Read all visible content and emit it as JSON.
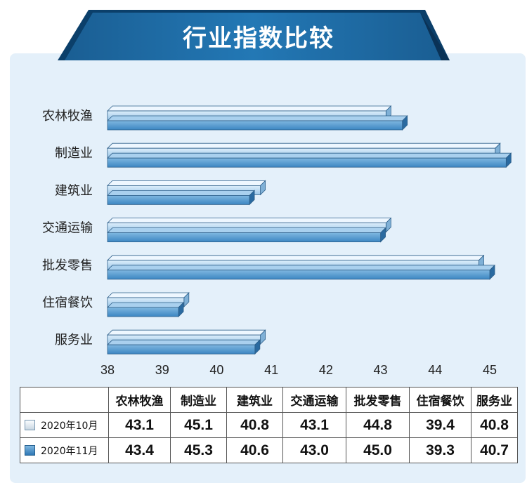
{
  "title": "行业指数比较",
  "chart_data": {
    "type": "bar",
    "orientation": "horizontal",
    "categories": [
      "农林牧渔",
      "制造业",
      "建筑业",
      "交通运输",
      "批发零售",
      "住宿餐饮",
      "服务业"
    ],
    "series": [
      {
        "name": "2020年10月",
        "values": [
          43.1,
          45.1,
          40.8,
          43.1,
          44.8,
          39.4,
          40.8
        ],
        "color": "#b8d6ee"
      },
      {
        "name": "2020年11月",
        "values": [
          43.4,
          45.3,
          40.6,
          43.0,
          45.0,
          39.3,
          40.7
        ],
        "color": "#4a90c8"
      }
    ],
    "xlim": [
      38,
      45
    ],
    "xticks": [
      "38",
      "39",
      "40",
      "41",
      "42",
      "43",
      "44",
      "45"
    ]
  },
  "table": {
    "headers": [
      "农林牧渔",
      "制造业",
      "建筑业",
      "交通运输",
      "批发零售",
      "住宿餐饮",
      "服务业"
    ],
    "rows": [
      {
        "label": "2020年10月",
        "swatch": "light",
        "values": [
          "43.1",
          "45.1",
          "40.8",
          "43.1",
          "44.8",
          "39.4",
          "40.8"
        ]
      },
      {
        "label": "2020年11月",
        "swatch": "dark",
        "values": [
          "43.4",
          "45.3",
          "40.6",
          "43.0",
          "45.0",
          "39.3",
          "40.7"
        ]
      }
    ]
  },
  "colors": {
    "banner": "#1d6aa3",
    "banner_dark": "#0b3f6a",
    "panel": "#e4f0fa",
    "bar_light": "#b8d6ee",
    "bar_dark": "#4a90c8"
  }
}
